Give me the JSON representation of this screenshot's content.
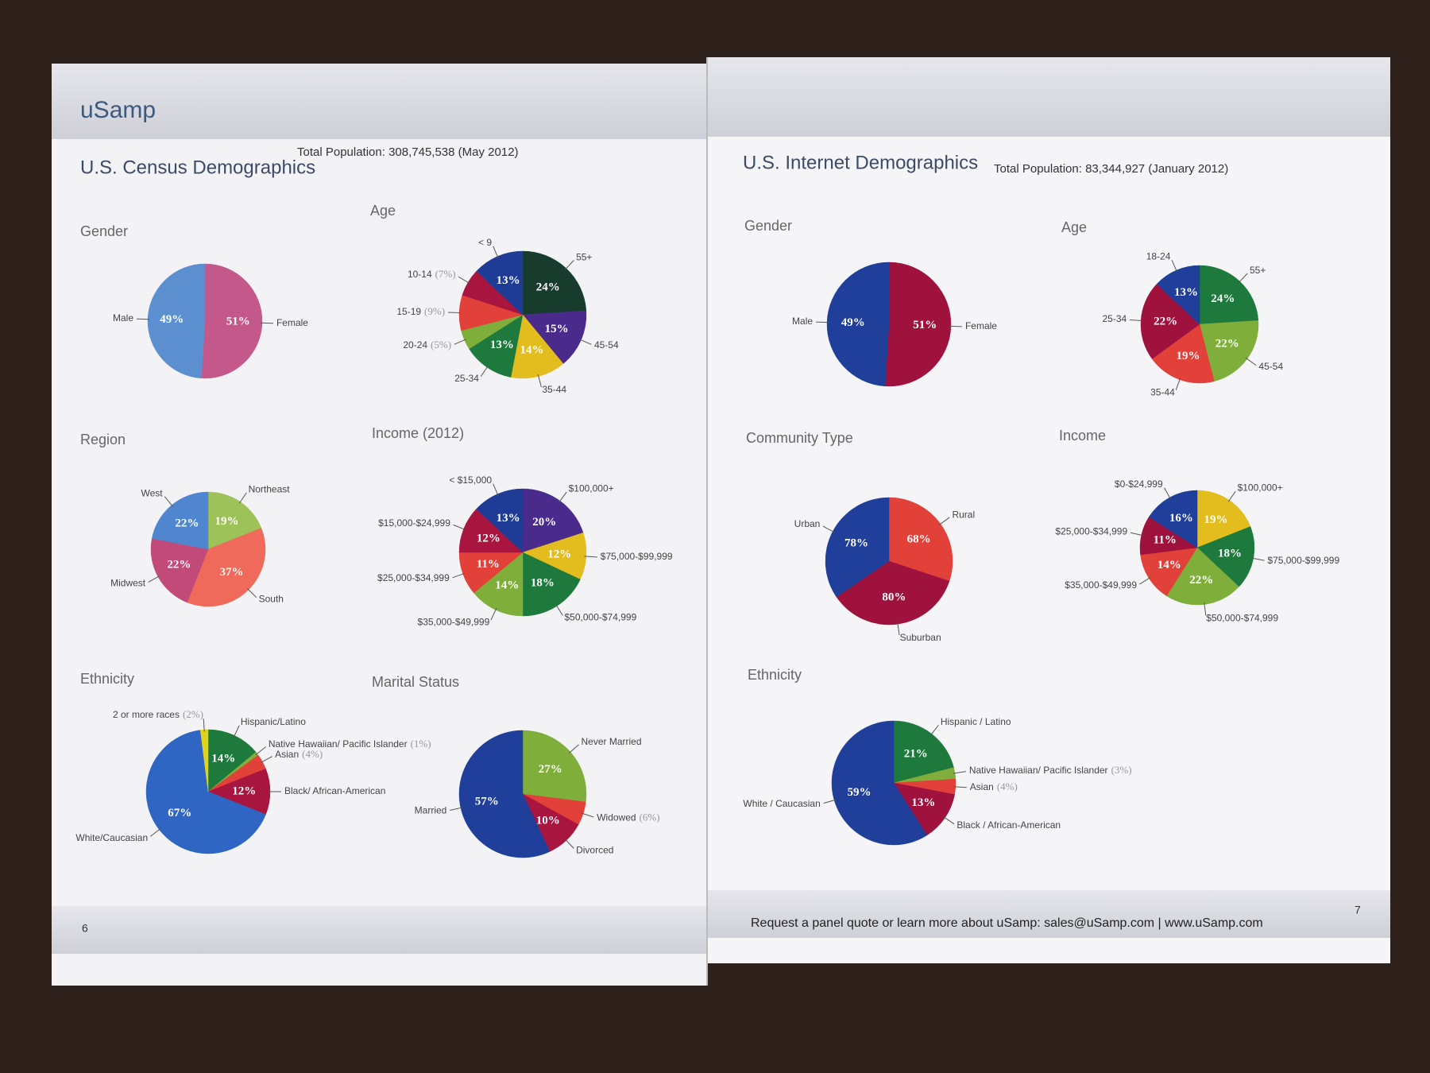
{
  "document": {
    "logo": "uSamp",
    "left_page": {
      "title": "U.S. Census Demographics",
      "subtitle": "Total Population: 308,745,538 (May 2012)",
      "page_number": "6"
    },
    "right_page": {
      "title": "U.S. Internet Demographics",
      "subtitle": "Total Population: 83,344,927 (January 2012)",
      "page_number": "7",
      "footer": "Request a panel quote or learn more about uSamp: sales@uSamp.com | www.uSamp.com"
    }
  },
  "chart_data": [
    {
      "type": "pie",
      "title": "Gender",
      "categories": [
        "Female",
        "Male"
      ],
      "values": [
        51,
        49
      ],
      "value_labels": [
        "51%",
        "49%"
      ],
      "colors": [
        "#c4588a",
        "#5b8fd0"
      ]
    },
    {
      "type": "pie",
      "title": "Age",
      "categories": [
        "55+",
        "45-54",
        "35-44",
        "25-34",
        "20-24",
        "15-19",
        "10-14",
        "< 9"
      ],
      "values": [
        24,
        15,
        14,
        13,
        5,
        9,
        7,
        13
      ],
      "value_labels": [
        "24%",
        "15%",
        "14%",
        "13%",
        "(5%)",
        "(9%)",
        "(7%)",
        "13%"
      ],
      "colors": [
        "#173c2e",
        "#4a2b8c",
        "#e3bc1d",
        "#1d7a3c",
        "#7fae3a",
        "#e2413a",
        "#a8153f",
        "#1e3c96"
      ]
    },
    {
      "type": "pie",
      "title": "Region",
      "categories": [
        "Northeast",
        "South",
        "Midwest",
        "West"
      ],
      "values": [
        19,
        37,
        22,
        22
      ],
      "value_labels": [
        "19%",
        "37%",
        "22%",
        "22%"
      ],
      "colors": [
        "#9dc25a",
        "#ef6a5a",
        "#c24a78",
        "#4f86cf"
      ]
    },
    {
      "type": "pie",
      "title": "Income (2012)",
      "categories": [
        "$100,000+",
        "$75,000-$99,999",
        "$50,000-$74,999",
        "$35,000-$49,999",
        "$25,000-$34,999",
        "$15,000-$24,999",
        "< $15,000"
      ],
      "values": [
        20,
        12,
        18,
        14,
        11,
        12,
        13
      ],
      "value_labels": [
        "20%",
        "12%",
        "18%",
        "14%",
        "11%",
        "12%",
        "13%"
      ],
      "colors": [
        "#4a2b8c",
        "#e3bc1d",
        "#1d7a3c",
        "#7fae3a",
        "#e2413a",
        "#a8153f",
        "#1e3c96"
      ]
    },
    {
      "type": "pie",
      "title": "Ethnicity",
      "categories": [
        "Hispanic/Latino",
        "Native Hawaiian/ Pacific Islander",
        "Asian",
        "Black/ African-American",
        "White/Caucasian",
        "2 or more races"
      ],
      "values": [
        14,
        1,
        4,
        12,
        67,
        2
      ],
      "value_labels": [
        "14%",
        "(1%)",
        "(4%)",
        "12%",
        "67%",
        "(2%)"
      ],
      "colors": [
        "#1d7a3c",
        "#7fae3a",
        "#e2413a",
        "#a8153f",
        "#2f66c4",
        "#e3d21d"
      ]
    },
    {
      "type": "pie",
      "title": "Marital Status",
      "categories": [
        "Never Married",
        "Widowed",
        "Divorced",
        "Married"
      ],
      "values": [
        27,
        6,
        10,
        57
      ],
      "value_labels": [
        "27%",
        "(6%)",
        "10%",
        "57%"
      ],
      "colors": [
        "#7fae3a",
        "#e2413a",
        "#a8153f",
        "#1f3f9a"
      ]
    },
    {
      "type": "pie",
      "title": "Gender",
      "categories": [
        "Female",
        "Male"
      ],
      "values": [
        51,
        49
      ],
      "value_labels": [
        "51%",
        "49%"
      ],
      "colors": [
        "#a0123e",
        "#1f3f9a"
      ]
    },
    {
      "type": "pie",
      "title": "Age",
      "categories": [
        "55+",
        "45-54",
        "35-44",
        "25-34",
        "18-24"
      ],
      "values": [
        24,
        22,
        19,
        22,
        13
      ],
      "value_labels": [
        "24%",
        "22%",
        "19%",
        "22%",
        "13%"
      ],
      "colors": [
        "#1d7a3c",
        "#7fae3a",
        "#e2413a",
        "#a0123e",
        "#1f3f9a"
      ]
    },
    {
      "type": "pie",
      "title": "Community Type",
      "categories": [
        "Rural",
        "Suburban",
        "Urban"
      ],
      "values": [
        68,
        80,
        78
      ],
      "value_labels": [
        "68%",
        "80%",
        "78%"
      ],
      "colors": [
        "#e2413a",
        "#a0123e",
        "#1f3f9a"
      ]
    },
    {
      "type": "pie",
      "title": "Income",
      "categories": [
        "$100,000+",
        "$75,000-$99,999",
        "$50,000-$74,999",
        "$35,000-$49,999",
        "$25,000-$34,999",
        "$0-$24,999"
      ],
      "values": [
        19,
        18,
        22,
        14,
        11,
        16
      ],
      "value_labels": [
        "19%",
        "18%",
        "22%",
        "14%",
        "11%",
        "16%"
      ],
      "colors": [
        "#e3bc1d",
        "#1d7a3c",
        "#7fae3a",
        "#e2413a",
        "#a0123e",
        "#1f3f9a"
      ]
    },
    {
      "type": "pie",
      "title": "Ethnicity",
      "categories": [
        "Hispanic / Latino",
        "Native Hawaiian/ Pacific Islander",
        "Asian",
        "Black / African-American",
        "White / Caucasian"
      ],
      "values": [
        21,
        3,
        4,
        13,
        59
      ],
      "value_labels": [
        "21%",
        "(3%)",
        "(4%)",
        "13%",
        "59%"
      ],
      "colors": [
        "#1d7a3c",
        "#7fae3a",
        "#e2413a",
        "#a0123e",
        "#1f3f9a"
      ]
    }
  ]
}
